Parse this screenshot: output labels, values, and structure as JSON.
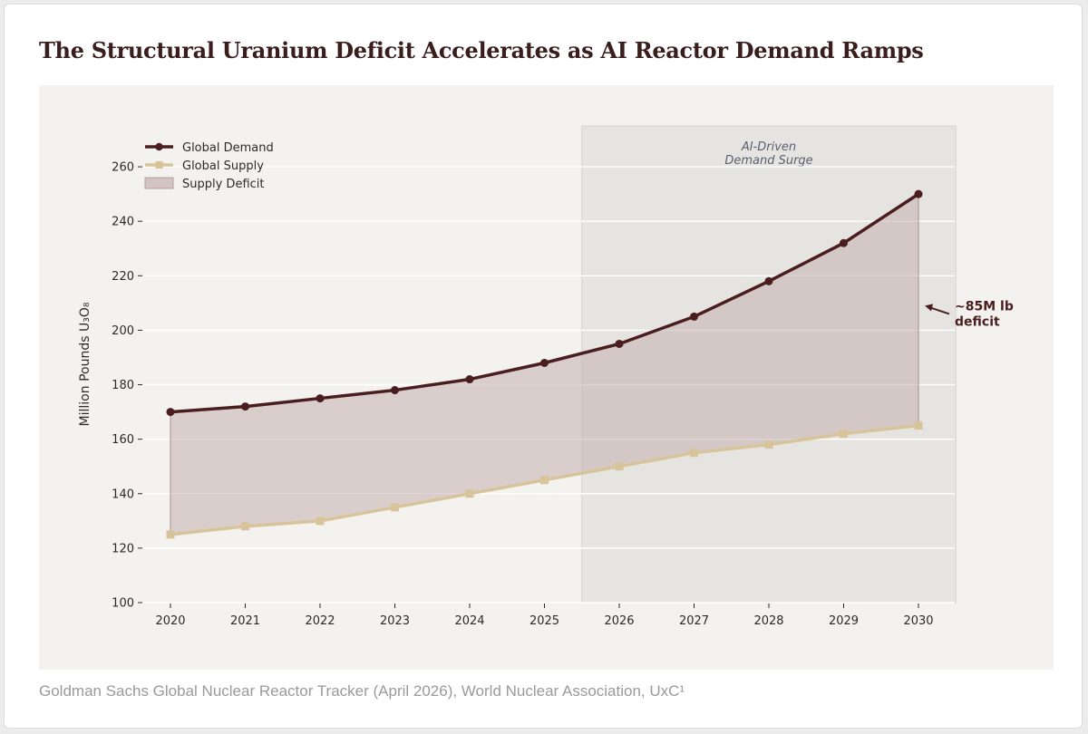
{
  "page": {
    "title": "The Structural Uranium Deficit Accelerates as AI Reactor Demand Ramps",
    "source": "Goldman Sachs Global Nuclear Reactor Tracker (April 2026), World Nuclear Association, UxC¹"
  },
  "colors": {
    "demand": "#4a1e1e",
    "supply": "#d8c49a",
    "deficit_fill": "#c4b0b0",
    "surge_band": "#e6e4e1",
    "plot_bg": "#f3f2ef",
    "annotation": "#4a1e1e",
    "axis_text": "#2b2b2b"
  },
  "chart_data": {
    "type": "line",
    "ylabel": "Million Pounds U₃O₈",
    "xlabel": "",
    "x": [
      2020,
      2021,
      2022,
      2023,
      2024,
      2025,
      2026,
      2027,
      2028,
      2029,
      2030
    ],
    "ylim": [
      100,
      275
    ],
    "yticks": [
      100,
      120,
      140,
      160,
      180,
      200,
      220,
      240,
      260
    ],
    "grid": true,
    "series": [
      {
        "name": "Global Demand",
        "marker": "circle",
        "values": [
          170,
          172,
          175,
          178,
          182,
          188,
          195,
          205,
          218,
          232,
          250
        ]
      },
      {
        "name": "Global Supply",
        "marker": "square",
        "values": [
          125,
          128,
          130,
          135,
          140,
          145,
          150,
          155,
          158,
          162,
          165
        ]
      }
    ],
    "fill_between": {
      "name": "Supply Deficit",
      "upper": "Global Demand",
      "lower": "Global Supply"
    },
    "legend_entries": [
      "Global Demand",
      "Global Supply",
      "Supply Deficit"
    ],
    "legend_position": "top-left",
    "shaded_region": {
      "x_start": 2025.5,
      "x_end": 2030.5,
      "label_line1": "AI-Driven",
      "label_line2": "Demand Surge"
    },
    "annotation": {
      "line1": "~85M lb",
      "line2": "deficit",
      "x": 2030,
      "y": 207
    }
  }
}
